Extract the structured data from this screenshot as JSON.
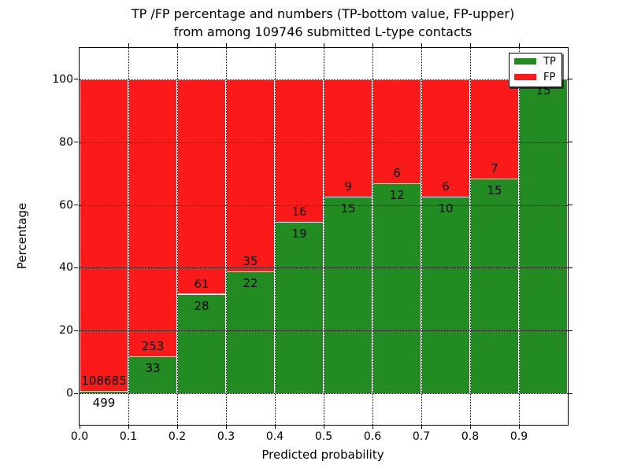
{
  "figure": {
    "title_line1": "TP /FP percentage and numbers (TP-bottom value, FP-upper)",
    "title_line2": "from among 109746 submitted L-type contacts"
  },
  "chart_data": {
    "type": "bar",
    "stacked": true,
    "title": "TP /FP percentage and numbers (TP-bottom value, FP-upper) from among 109746 submitted L-type contacts",
    "xlabel": "Predicted probability",
    "ylabel": "Percentage",
    "total_submitted": 109746,
    "categories": [
      "0.0",
      "0.1",
      "0.2",
      "0.3",
      "0.4",
      "0.5",
      "0.6",
      "0.7",
      "0.8",
      "0.9"
    ],
    "bin_width": 0.1,
    "series": [
      {
        "name": "TP",
        "color": "#228b22",
        "values": [
          499,
          33,
          28,
          22,
          19,
          15,
          12,
          10,
          15,
          15
        ]
      },
      {
        "name": "FP",
        "color": "#fa1a1a",
        "values": [
          108685,
          253,
          61,
          35,
          16,
          9,
          6,
          6,
          7,
          0
        ]
      }
    ],
    "tp_percent": [
      0.46,
      11.54,
      31.46,
      38.6,
      54.29,
      62.5,
      66.67,
      62.5,
      68.18,
      100.0
    ],
    "y_ticks": [
      0,
      20,
      40,
      60,
      80,
      100
    ],
    "x_ticks": [
      "0.0",
      "0.1",
      "0.2",
      "0.3",
      "0.4",
      "0.5",
      "0.6",
      "0.7",
      "0.8",
      "0.9"
    ],
    "x_tick_values": [
      0,
      0.1,
      0.2,
      0.3,
      0.4,
      0.5,
      0.6,
      0.7,
      0.8,
      0.9
    ],
    "ylim": [
      -10,
      110
    ],
    "xlim": [
      0,
      1
    ],
    "grid": "dotted",
    "legend": {
      "position": "upper right",
      "entries": [
        {
          "label": "TP",
          "color": "#228b22"
        },
        {
          "label": "FP",
          "color": "#fa1a1a"
        }
      ]
    }
  }
}
